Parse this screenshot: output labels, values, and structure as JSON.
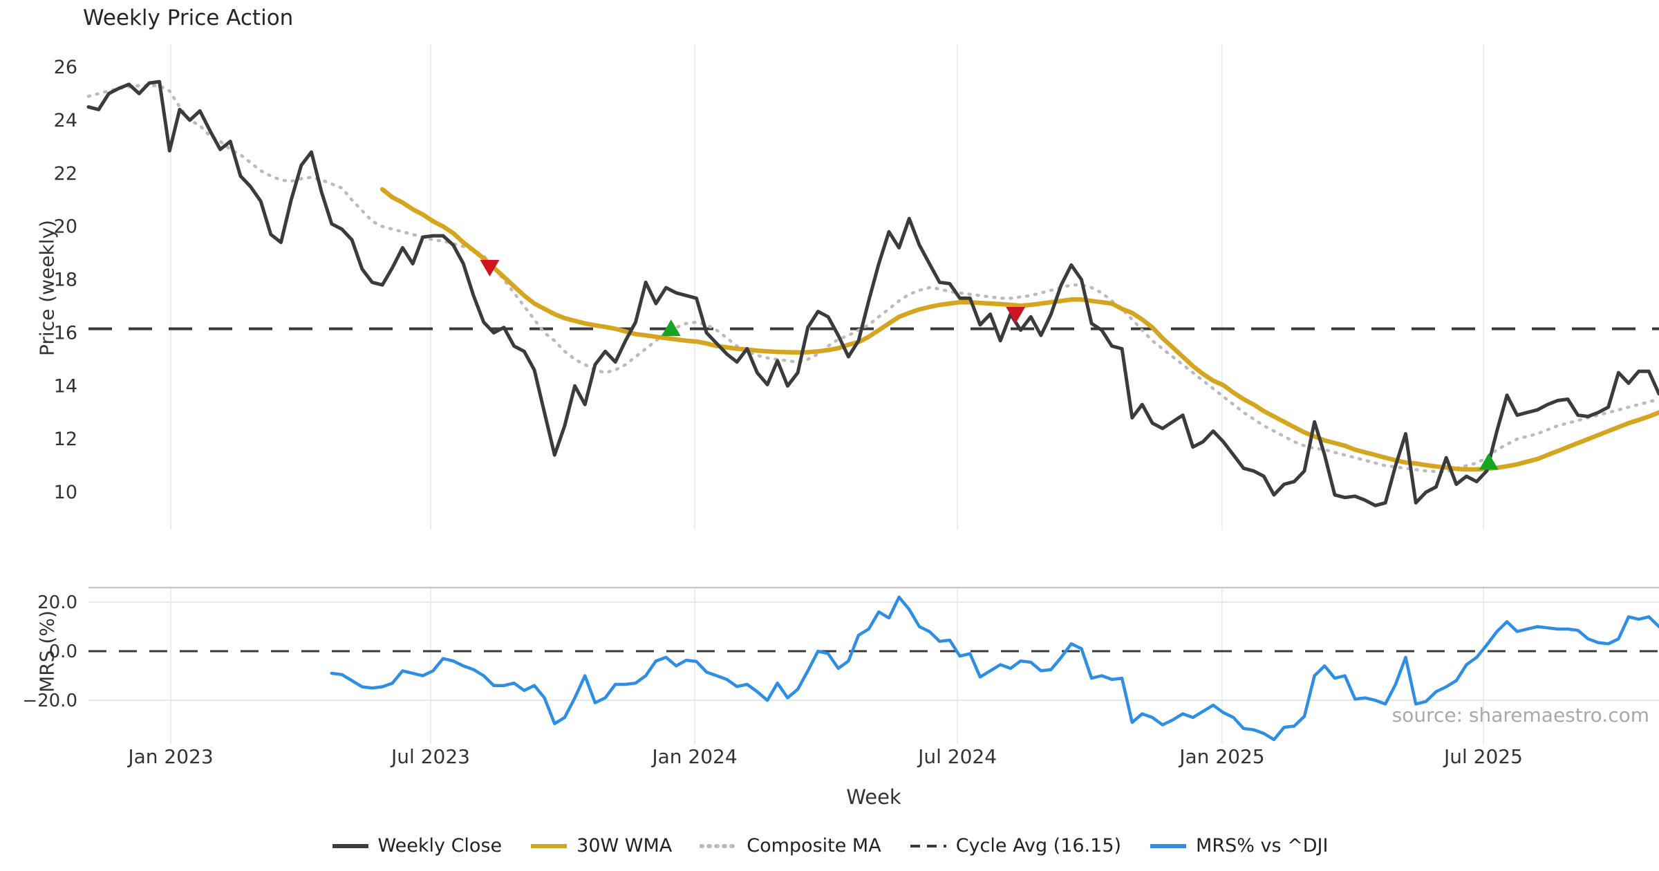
{
  "title": "Weekly Price Action",
  "source_note": "source: sharemaestro.com",
  "axis": {
    "xlabel": "Week",
    "ylabel_top": "Price (weekly)",
    "ylabel_bottom": "MRS (%)"
  },
  "colors": {
    "close": "#3b3b3b",
    "wma": "#d6a51f",
    "composite": "#bbbbbb",
    "cycle": "#3a3a3a",
    "mrs": "#2e8ee6",
    "sell_marker": "#cd1420",
    "buy_marker": "#17a422",
    "grid_vertical": "#e9edf2",
    "grid_light": "#e7e7e7",
    "panel_border": "#c9c9c9",
    "tick_text": "#333333"
  },
  "legend": {
    "items": [
      {
        "key": "close",
        "label": "Weekly Close",
        "style": "solid",
        "color": "#3b3b3b"
      },
      {
        "key": "wma",
        "label": "30W WMA",
        "style": "solid",
        "color": "#d6a51f"
      },
      {
        "key": "composite",
        "label": "Composite MA",
        "style": "dotted",
        "color": "#bbbbbb"
      },
      {
        "key": "cycle",
        "label": "Cycle Avg (16.15)",
        "style": "dashed",
        "color": "#3a3a3a"
      },
      {
        "key": "mrs",
        "label": "MRS% vs ^DJI",
        "style": "solid",
        "color": "#2e8ee6"
      }
    ]
  },
  "chart_data": [
    {
      "type": "line",
      "panel": "price",
      "title": "Weekly Price Action",
      "xlabel": "Week",
      "ylabel": "Price (weekly)",
      "ylim": [
        9.0,
        26.8
      ],
      "yticks": [
        26,
        24,
        22,
        20,
        18,
        16,
        14,
        12,
        10
      ],
      "grid": "vertical-only",
      "xticks": [
        {
          "week": 8.12,
          "label": "Jan 2023"
        },
        {
          "week": 33.77,
          "label": "Jul 2023"
        },
        {
          "week": 59.83,
          "label": "Jan 2024"
        },
        {
          "week": 85.76,
          "label": "Jul 2024"
        },
        {
          "week": 111.88,
          "label": "Jan 2025"
        },
        {
          "week": 137.67,
          "label": "Jul 2025"
        }
      ],
      "cycle_avg": 16.15,
      "series": [
        {
          "name": "Weekly Close",
          "style": "solid",
          "color": "#3b3b3b",
          "start_week": 0,
          "values": [
            24.5,
            24.4,
            25.0,
            25.2,
            25.35,
            25.0,
            25.4,
            25.45,
            22.85,
            24.4,
            24.0,
            24.35,
            23.6,
            22.9,
            23.2,
            21.9,
            21.5,
            20.95,
            19.7,
            19.4,
            21.0,
            22.3,
            22.8,
            21.3,
            20.1,
            19.9,
            19.5,
            18.4,
            17.9,
            17.8,
            18.45,
            19.2,
            18.6,
            19.6,
            19.65,
            19.65,
            19.3,
            18.6,
            17.4,
            16.4,
            16.0,
            16.2,
            15.5,
            15.3,
            14.6,
            13.0,
            11.4,
            12.5,
            14.0,
            13.3,
            14.8,
            15.3,
            14.9,
            15.7,
            16.4,
            17.9,
            17.1,
            17.7,
            17.5,
            17.4,
            17.3,
            16.0,
            15.6,
            15.2,
            14.9,
            15.4,
            14.5,
            14.05,
            14.95,
            14.0,
            14.5,
            16.2,
            16.8,
            16.6,
            15.9,
            15.1,
            15.7,
            17.2,
            18.6,
            19.8,
            19.2,
            20.3,
            19.3,
            18.6,
            17.9,
            17.85,
            17.3,
            17.3,
            16.3,
            16.7,
            15.7,
            16.7,
            16.1,
            16.6,
            15.9,
            16.7,
            17.8,
            18.55,
            18.0,
            16.35,
            16.1,
            15.5,
            15.4,
            12.8,
            13.3,
            12.6,
            12.4,
            12.65,
            12.9,
            11.7,
            11.9,
            12.3,
            11.9,
            11.4,
            10.9,
            10.8,
            10.6,
            9.9,
            10.3,
            10.4,
            10.8,
            12.65,
            11.4,
            9.9,
            9.8,
            9.85,
            9.7,
            9.5,
            9.6,
            11.0,
            12.2,
            9.6,
            10.0,
            10.2,
            11.3,
            10.3,
            10.6,
            10.4,
            10.8,
            12.3,
            13.65,
            12.9,
            13.0,
            13.1,
            13.3,
            13.45,
            13.5,
            12.9,
            12.85,
            13.0,
            13.2,
            14.5,
            14.1,
            14.55,
            14.55,
            13.7
          ]
        },
        {
          "name": "30W WMA",
          "style": "solid",
          "color": "#d6a51f",
          "start_week": 29,
          "values": [
            21.4,
            21.1,
            20.9,
            20.65,
            20.45,
            20.2,
            20.0,
            19.75,
            19.4,
            19.1,
            18.8,
            18.45,
            18.1,
            17.75,
            17.4,
            17.1,
            16.9,
            16.7,
            16.55,
            16.45,
            16.35,
            16.28,
            16.22,
            16.15,
            16.05,
            15.95,
            15.9,
            15.85,
            15.8,
            15.75,
            15.7,
            15.67,
            15.6,
            15.5,
            15.45,
            15.4,
            15.37,
            15.33,
            15.3,
            15.28,
            15.27,
            15.26,
            15.27,
            15.3,
            15.35,
            15.42,
            15.55,
            15.65,
            15.85,
            16.1,
            16.35,
            16.6,
            16.75,
            16.88,
            16.97,
            17.05,
            17.1,
            17.15,
            17.15,
            17.12,
            17.1,
            17.08,
            17.05,
            17.02,
            17.05,
            17.1,
            17.15,
            17.2,
            17.25,
            17.25,
            17.2,
            17.15,
            17.1,
            16.9,
            16.75,
            16.5,
            16.2,
            15.8,
            15.45,
            15.1,
            14.75,
            14.45,
            14.2,
            14.03,
            13.75,
            13.5,
            13.3,
            13.05,
            12.85,
            12.65,
            12.45,
            12.25,
            12.1,
            11.95,
            11.85,
            11.75,
            11.6,
            11.5,
            11.4,
            11.3,
            11.2,
            11.12,
            11.08,
            11.02,
            10.97,
            10.93,
            10.88,
            10.86,
            10.86,
            10.88,
            10.92,
            10.98,
            11.05,
            11.15,
            11.25,
            11.4,
            11.55,
            11.7,
            11.85,
            12.0,
            12.15,
            12.3,
            12.45,
            12.6,
            12.72,
            12.85,
            13.0
          ]
        },
        {
          "name": "Composite MA",
          "style": "dotted",
          "color": "#bbbbbb",
          "start_week": 0,
          "values": [
            24.9,
            25.0,
            25.1,
            25.2,
            25.25,
            25.3,
            25.3,
            25.3,
            25.1,
            24.5,
            24.0,
            23.8,
            23.4,
            23.2,
            22.9,
            22.7,
            22.4,
            22.1,
            21.9,
            21.75,
            21.7,
            21.8,
            21.85,
            21.75,
            21.6,
            21.45,
            21.0,
            20.6,
            20.2,
            20.0,
            19.9,
            19.8,
            19.7,
            19.6,
            19.5,
            19.45,
            19.35,
            19.25,
            19.1,
            18.9,
            18.45,
            18.0,
            17.5,
            17.0,
            16.5,
            16.0,
            15.7,
            15.3,
            15.0,
            14.8,
            14.6,
            14.5,
            14.6,
            14.8,
            15.1,
            15.4,
            15.7,
            16.0,
            16.2,
            16.35,
            16.4,
            16.3,
            16.1,
            15.8,
            15.5,
            15.3,
            15.15,
            15.05,
            15.0,
            14.95,
            14.9,
            15.0,
            15.2,
            15.5,
            15.75,
            15.9,
            16.1,
            16.3,
            16.6,
            16.9,
            17.2,
            17.45,
            17.6,
            17.7,
            17.65,
            17.55,
            17.5,
            17.45,
            17.4,
            17.35,
            17.3,
            17.3,
            17.35,
            17.4,
            17.5,
            17.6,
            17.7,
            17.8,
            17.8,
            17.7,
            17.5,
            17.2,
            16.9,
            16.5,
            16.1,
            15.7,
            15.4,
            15.1,
            14.8,
            14.5,
            14.2,
            13.9,
            13.6,
            13.3,
            13.0,
            12.75,
            12.5,
            12.3,
            12.1,
            11.9,
            11.75,
            11.65,
            11.6,
            11.5,
            11.4,
            11.3,
            11.2,
            11.1,
            11.0,
            10.95,
            10.9,
            10.85,
            10.8,
            10.78,
            10.78,
            10.9,
            11.0,
            11.1,
            11.3,
            11.6,
            11.8,
            12.0,
            12.1,
            12.2,
            12.35,
            12.5,
            12.6,
            12.7,
            12.8,
            12.9,
            13.0,
            13.1,
            13.2,
            13.3,
            13.4,
            13.5
          ]
        }
      ],
      "markers": [
        {
          "type": "sell",
          "week": 39.6,
          "price": 18.45
        },
        {
          "type": "buy",
          "week": 57.5,
          "price": 16.17
        },
        {
          "type": "sell",
          "week": 91.5,
          "price": 16.68
        },
        {
          "type": "buy",
          "week": 138.2,
          "price": 11.14
        }
      ]
    },
    {
      "type": "line",
      "panel": "mrs",
      "ylabel": "MRS (%)",
      "ylim": [
        -40,
        27
      ],
      "yticks": [
        20.0,
        0.0,
        -20.0
      ],
      "ytick_labels": [
        "20.0",
        "0.0",
        "−20.0"
      ],
      "zero_line": 0.0,
      "series": [
        {
          "name": "MRS% vs ^DJI",
          "style": "solid",
          "color": "#2e8ee6",
          "start_week": 24,
          "values": [
            -9,
            -9.5,
            -12,
            -14.5,
            -15,
            -14.5,
            -13,
            -8,
            -9,
            -10,
            -8,
            -3,
            -4,
            -6,
            -7.5,
            -10,
            -14,
            -14,
            -13,
            -16,
            -14,
            -19,
            -29.5,
            -27,
            -19,
            -10,
            -21,
            -19,
            -13.5,
            -13.5,
            -13,
            -10,
            -4,
            -2.5,
            -6,
            -3.7,
            -4.2,
            -8.5,
            -10,
            -11.5,
            -14.4,
            -13.5,
            -16.5,
            -20,
            -13,
            -19,
            -15.5,
            -8,
            0,
            -1,
            -7,
            -4,
            6.5,
            9,
            16,
            13.5,
            22,
            17,
            10,
            8,
            4,
            4.5,
            -2,
            -1,
            -10.5,
            -8,
            -5.5,
            -7,
            -4,
            -4.5,
            -8,
            -7.5,
            -2.5,
            3,
            1,
            -11,
            -10,
            -11.5,
            -11,
            -29,
            -25.5,
            -27,
            -30,
            -28,
            -25.5,
            -27,
            -24.5,
            -22,
            -25,
            -27,
            -31.5,
            -32,
            -33.5,
            -36,
            -31,
            -30.5,
            -26.5,
            -10,
            -6,
            -11,
            -10,
            -19.5,
            -19,
            -20,
            -21.5,
            -13.5,
            -2.5,
            -21.5,
            -20.5,
            -16.5,
            -14.5,
            -12,
            -5.5,
            -2.5,
            2.5,
            8,
            12,
            8,
            9,
            10,
            9.5,
            9,
            9,
            8.5,
            5,
            3.5,
            3,
            5,
            14,
            13,
            14,
            10
          ]
        }
      ]
    }
  ]
}
